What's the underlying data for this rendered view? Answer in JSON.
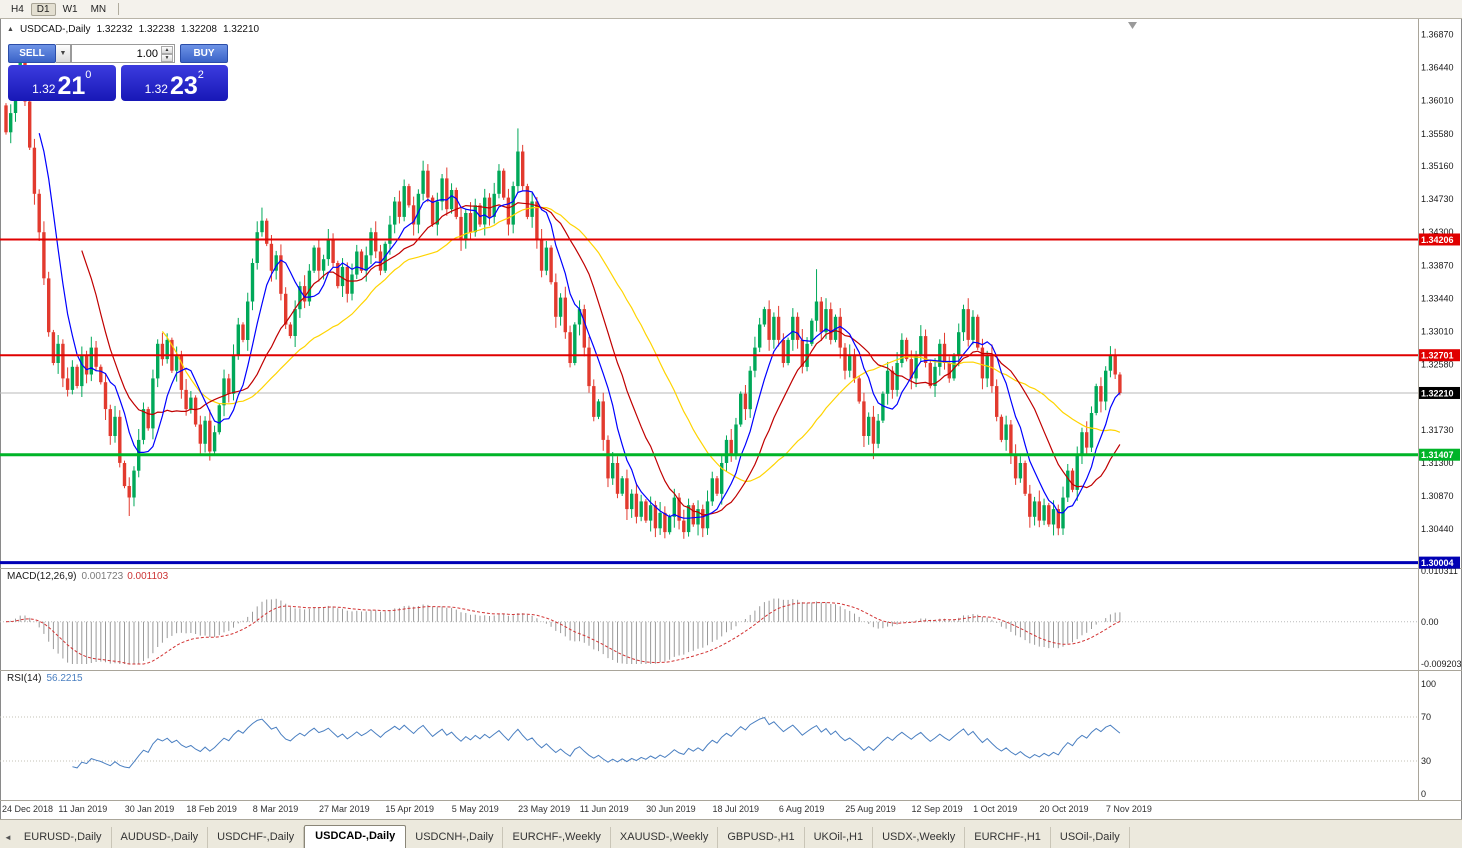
{
  "toolbar": {
    "timeframes": [
      "H4",
      "D1",
      "W1",
      "MN"
    ],
    "active": "D1"
  },
  "icons": {
    "collapse": "▲",
    "chevron_down": "▼",
    "spin_up": "▲",
    "spin_down": "▼",
    "tab_scroll_left": "◄",
    "chart_shift": "▼"
  },
  "chart_header": {
    "title": "USDCAD-,Daily",
    "open": "1.32232",
    "high": "1.32238",
    "low": "1.32208",
    "close": "1.32210"
  },
  "one_click": {
    "sell_label": "SELL",
    "buy_label": "BUY",
    "volume": "1.00",
    "sell_price_prefix": "1.32",
    "sell_price_big": "21",
    "sell_price_sup": "0",
    "buy_price_prefix": "1.32",
    "buy_price_big": "23",
    "buy_price_sup": "2"
  },
  "tabs": {
    "items": [
      "EURUSD-,Daily",
      "AUDUSD-,Daily",
      "USDCHF-,Daily",
      "USDCAD-,Daily",
      "USDCNH-,Daily",
      "EURCHF-,Weekly",
      "XAUUSD-,Weekly",
      "GBPUSD-,H1",
      "UKOil-,H1",
      "USDX-,Weekly",
      "EURCHF-,H1",
      "USOil-,Daily"
    ],
    "active": "USDCAD-,Daily"
  },
  "chart_data": {
    "type": "candlestick",
    "title": "USDCAD-,Daily",
    "symbol": "USDCAD",
    "timeframe": "Daily",
    "current_price": 1.3221,
    "current_price_label": "1.32210",
    "y_ticks": [
      "1.36870",
      "1.36440",
      "1.36010",
      "1.35580",
      "1.35160",
      "1.34730",
      "1.34300",
      "1.33870",
      "1.33440",
      "1.33010",
      "1.32580",
      "1.31730",
      "1.31300",
      "1.30870",
      "1.30440"
    ],
    "x_labels": [
      "24 Dec 2018",
      "11 Jan 2019",
      "30 Jan 2019",
      "18 Feb 2019",
      "8 Mar 2019",
      "27 Mar 2019",
      "15 Apr 2019",
      "5 May 2019",
      "23 May 2019",
      "11 Jun 2019",
      "30 Jun 2019",
      "18 Jul 2019",
      "6 Aug 2019",
      "25 Aug 2019",
      "12 Sep 2019",
      "1 Oct 2019",
      "20 Oct 2019",
      "7 Nov 2019"
    ],
    "levels": [
      {
        "value": 1.34206,
        "label": "1.34206",
        "color": "#e00000",
        "width": 2
      },
      {
        "value": 1.32701,
        "label": "1.32701",
        "color": "#e00000",
        "width": 2
      },
      {
        "value": 1.31407,
        "label": "1.31407",
        "color": "#00b428",
        "width": 3
      },
      {
        "value": 1.30004,
        "label": "1.30004",
        "color": "#0000b4",
        "width": 3
      }
    ],
    "colors": {
      "up": "#00a859",
      "down": "#e23a2e",
      "ma_fast": "#0000ff",
      "ma_mid": "#c00000",
      "ma_slow": "#ffd400",
      "macd_hist": "#9a9a9a",
      "macd_signal": "#d23333",
      "rsi_line": "#4a7fc1",
      "current_line": "#b9b9b9",
      "tag_current": "#000000"
    },
    "ma_periods": [
      8,
      17,
      34
    ],
    "macd": {
      "name": "MACD(12,26,9)",
      "value_main": "0.001723",
      "value_signal": "0.001103",
      "axis": [
        "0.010311",
        "0.00",
        "-0.009203"
      ]
    },
    "rsi": {
      "name": "RSI(14)",
      "value": "56.2215",
      "period": 14,
      "axis": [
        "100",
        "70",
        "30",
        "0"
      ]
    },
    "first_open": 1.3595,
    "wick_overrides": {
      "3": {
        "h": 1.3668
      },
      "26": {
        "l": 1.3061
      },
      "43": {
        "l": 1.3133
      },
      "54": {
        "h": 1.3462
      },
      "88": {
        "h": 1.3523
      },
      "108": {
        "h": 1.3565
      },
      "139": {
        "l": 1.3032
      },
      "171": {
        "h": 1.3382
      },
      "183": {
        "l": 1.3135
      },
      "222": {
        "l": 1.3036
      },
      "233": {
        "h": 1.3282
      }
    },
    "closes": [
      1.356,
      1.3585,
      1.362,
      1.3655,
      1.36,
      1.354,
      1.348,
      1.343,
      1.337,
      1.33,
      1.326,
      1.3285,
      1.324,
      1.3225,
      1.3255,
      1.323,
      1.327,
      1.3245,
      1.328,
      1.3255,
      1.3235,
      1.32,
      1.3165,
      1.319,
      1.313,
      1.31,
      1.3085,
      1.312,
      1.316,
      1.32,
      1.3175,
      1.324,
      1.3285,
      1.3265,
      1.329,
      1.325,
      1.327,
      1.3225,
      1.32,
      1.3215,
      1.318,
      1.3155,
      1.3185,
      1.3145,
      1.317,
      1.3205,
      1.324,
      1.322,
      1.327,
      1.331,
      1.329,
      1.334,
      1.339,
      1.343,
      1.3445,
      1.3415,
      1.338,
      1.34,
      1.335,
      1.331,
      1.3295,
      1.333,
      1.336,
      1.334,
      1.338,
      1.341,
      1.338,
      1.3395,
      1.342,
      1.339,
      1.336,
      1.3385,
      1.335,
      1.3375,
      1.3405,
      1.338,
      1.34,
      1.343,
      1.3405,
      1.338,
      1.3415,
      1.344,
      1.347,
      1.345,
      1.349,
      1.3465,
      1.344,
      1.348,
      1.351,
      1.3475,
      1.344,
      1.347,
      1.35,
      1.346,
      1.3485,
      1.345,
      1.342,
      1.3455,
      1.343,
      1.3465,
      1.344,
      1.3475,
      1.345,
      1.348,
      1.351,
      1.3475,
      1.344,
      1.349,
      1.3535,
      1.349,
      1.345,
      1.347,
      1.342,
      1.338,
      1.341,
      1.3365,
      1.332,
      1.3345,
      1.33,
      1.326,
      1.331,
      1.333,
      1.328,
      1.323,
      1.319,
      1.321,
      1.316,
      1.311,
      1.313,
      1.309,
      1.311,
      1.307,
      1.309,
      1.306,
      1.308,
      1.3055,
      1.3075,
      1.3045,
      1.3065,
      1.304,
      1.306,
      1.3085,
      1.3055,
      1.304,
      1.3075,
      1.305,
      1.307,
      1.3045,
      1.308,
      1.311,
      1.309,
      1.313,
      1.316,
      1.314,
      1.318,
      1.322,
      1.32,
      1.325,
      1.328,
      1.331,
      1.333,
      1.329,
      1.332,
      1.329,
      1.326,
      1.329,
      1.332,
      1.329,
      1.3255,
      1.3285,
      1.3315,
      1.334,
      1.33,
      1.333,
      1.329,
      1.332,
      1.328,
      1.325,
      1.327,
      1.324,
      1.321,
      1.3165,
      1.319,
      1.3155,
      1.3185,
      1.322,
      1.325,
      1.3225,
      1.326,
      1.329,
      1.3265,
      1.324,
      1.327,
      1.3295,
      1.326,
      1.323,
      1.3255,
      1.3285,
      1.326,
      1.324,
      1.327,
      1.33,
      1.333,
      1.329,
      1.332,
      1.328,
      1.324,
      1.327,
      1.323,
      1.319,
      1.316,
      1.318,
      1.314,
      1.311,
      1.313,
      1.309,
      1.306,
      1.308,
      1.3055,
      1.3075,
      1.305,
      1.307,
      1.3045,
      1.3085,
      1.312,
      1.3095,
      1.314,
      1.317,
      1.315,
      1.3195,
      1.323,
      1.321,
      1.325,
      1.327,
      1.3245,
      1.3221
    ]
  }
}
